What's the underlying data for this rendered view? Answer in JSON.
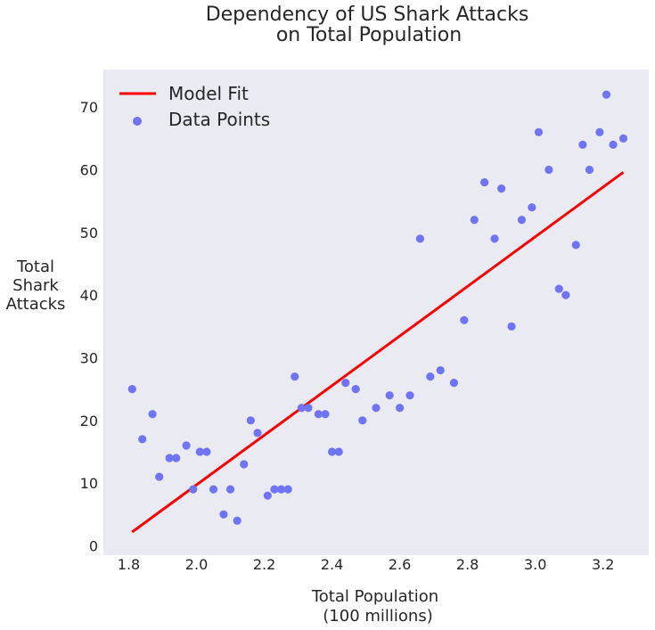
{
  "chart_data": {
    "type": "scatter",
    "title": [
      "Dependency of US Shark Attacks",
      "on Total Population"
    ],
    "xlabel": [
      "Total Population",
      "(100 millions)"
    ],
    "ylabel": [
      "Total",
      "Shark",
      "Attacks"
    ],
    "xlim": [
      1.725,
      3.335
    ],
    "ylim": [
      -1.5,
      76.0
    ],
    "x_ticks": [
      1.8,
      2.0,
      2.2,
      2.4,
      2.6,
      2.8,
      3.0,
      3.2
    ],
    "x_tick_labels": [
      "1.8",
      "2.0",
      "2.2",
      "2.4",
      "2.6",
      "2.8",
      "3.0",
      "3.2"
    ],
    "y_ticks": [
      0,
      10,
      20,
      30,
      40,
      50,
      60,
      70
    ],
    "y_tick_labels": [
      "0",
      "10",
      "20",
      "30",
      "40",
      "50",
      "60",
      "70"
    ],
    "grid": false,
    "background": "#eaeaf2",
    "legend_placement": "top-left",
    "series": [
      {
        "name": "Model Fit",
        "kind": "line",
        "color": "#ff0000",
        "x": [
          1.81,
          3.26
        ],
        "y": [
          2.2,
          59.6
        ]
      },
      {
        "name": "Data Points",
        "kind": "scatter",
        "color": "#6f73f5",
        "points": [
          [
            1.81,
            25
          ],
          [
            1.84,
            17
          ],
          [
            1.87,
            21
          ],
          [
            1.89,
            11
          ],
          [
            1.92,
            14
          ],
          [
            1.94,
            14
          ],
          [
            1.97,
            16
          ],
          [
            1.99,
            9
          ],
          [
            2.01,
            15
          ],
          [
            2.03,
            15
          ],
          [
            2.05,
            9
          ],
          [
            2.08,
            5
          ],
          [
            2.1,
            9
          ],
          [
            2.12,
            4
          ],
          [
            2.14,
            13
          ],
          [
            2.16,
            20
          ],
          [
            2.18,
            18
          ],
          [
            2.21,
            8
          ],
          [
            2.23,
            9
          ],
          [
            2.25,
            9
          ],
          [
            2.27,
            9
          ],
          [
            2.29,
            27
          ],
          [
            2.31,
            22
          ],
          [
            2.33,
            22
          ],
          [
            2.36,
            21
          ],
          [
            2.38,
            21
          ],
          [
            2.4,
            15
          ],
          [
            2.42,
            15
          ],
          [
            2.44,
            26
          ],
          [
            2.47,
            25
          ],
          [
            2.49,
            20
          ],
          [
            2.53,
            22
          ],
          [
            2.57,
            24
          ],
          [
            2.6,
            22
          ],
          [
            2.63,
            24
          ],
          [
            2.66,
            49
          ],
          [
            2.69,
            27
          ],
          [
            2.72,
            28
          ],
          [
            2.76,
            26
          ],
          [
            2.79,
            36
          ],
          [
            2.82,
            52
          ],
          [
            2.85,
            58
          ],
          [
            2.88,
            49
          ],
          [
            2.9,
            57
          ],
          [
            2.93,
            35
          ],
          [
            2.96,
            52
          ],
          [
            2.99,
            54
          ],
          [
            3.01,
            66
          ],
          [
            3.04,
            60
          ],
          [
            3.07,
            41
          ],
          [
            3.09,
            40
          ],
          [
            3.12,
            48
          ],
          [
            3.14,
            64
          ],
          [
            3.16,
            60
          ],
          [
            3.19,
            66
          ],
          [
            3.21,
            72
          ],
          [
            3.23,
            64
          ],
          [
            3.26,
            65
          ]
        ]
      }
    ]
  }
}
